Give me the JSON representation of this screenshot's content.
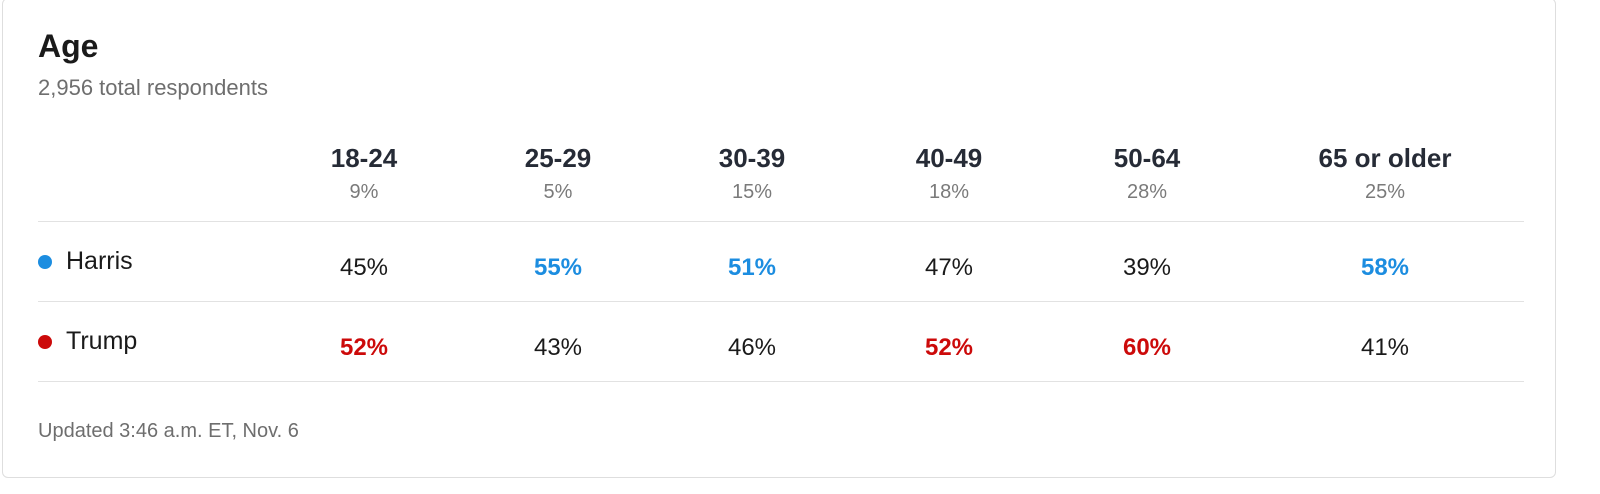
{
  "header": {
    "title": "Age",
    "subtitle": "2,956 total respondents"
  },
  "table": {
    "columns": [
      {
        "label": "18-24",
        "share": "9%"
      },
      {
        "label": "25-29",
        "share": "5%"
      },
      {
        "label": "30-39",
        "share": "15%"
      },
      {
        "label": "40-49",
        "share": "18%"
      },
      {
        "label": "50-64",
        "share": "28%"
      },
      {
        "label": "65 or older",
        "share": "25%"
      }
    ],
    "rows": [
      {
        "name": "Harris",
        "color": "#1c8de0",
        "values": [
          "45%",
          "55%",
          "51%",
          "47%",
          "39%",
          "58%"
        ]
      },
      {
        "name": "Trump",
        "color": "#cc0a0a",
        "values": [
          "52%",
          "43%",
          "46%",
          "52%",
          "60%",
          "41%"
        ]
      }
    ]
  },
  "footer": {
    "updated": "Updated 3:46 a.m. ET, Nov. 6"
  }
}
